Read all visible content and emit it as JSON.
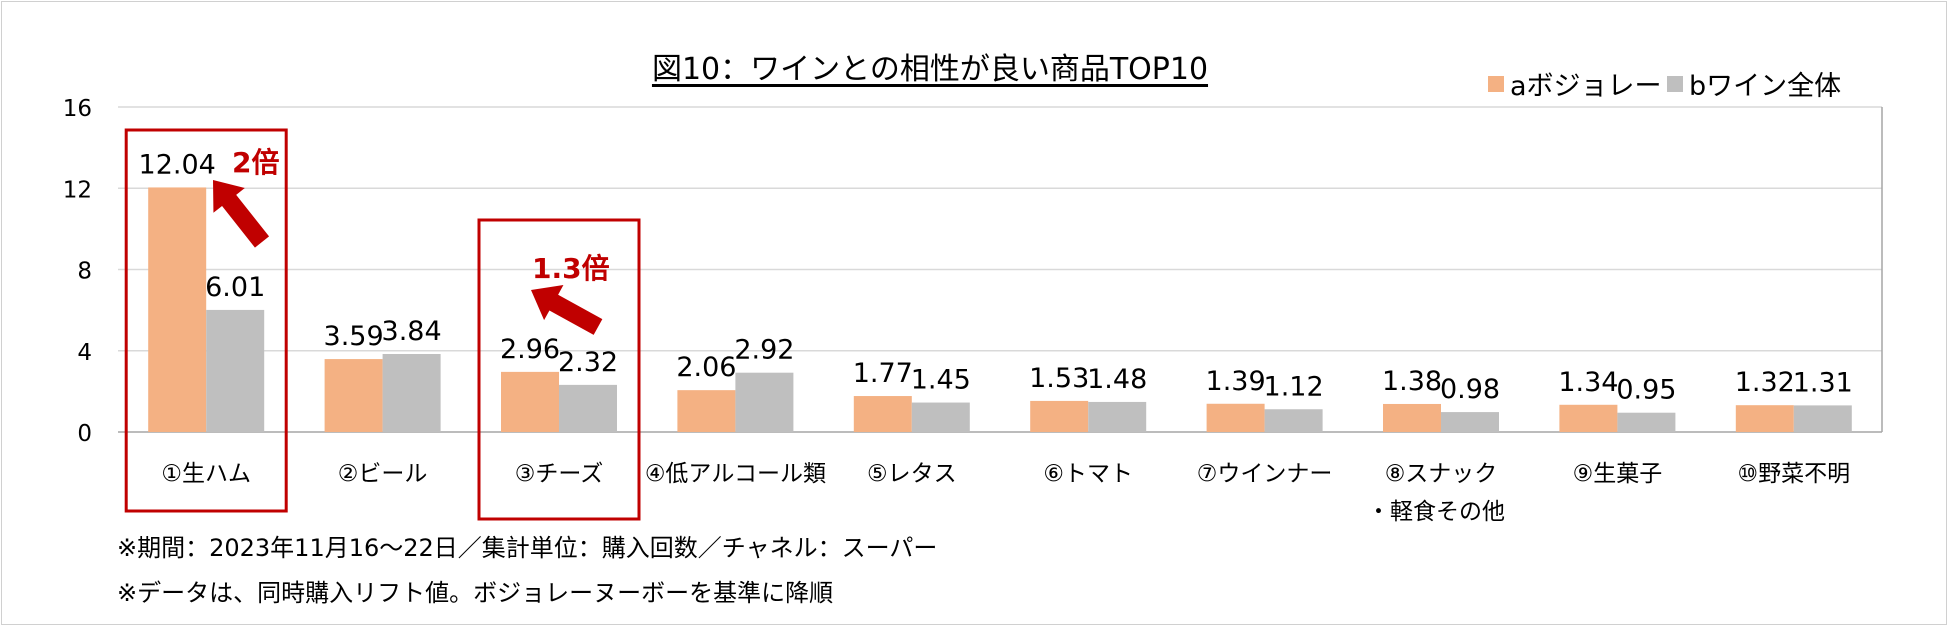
{
  "chart_data": {
    "type": "bar",
    "title": "図10：ワインとの相性が良い商品TOP10",
    "categories": [
      "①生ハム",
      "②ビール",
      "③チーズ",
      "④低アルコール類",
      "⑤レタス",
      "⑥トマト",
      "⑦ウインナー",
      "⑧スナック・軽食その他",
      "⑨生菓子",
      "⑩野菜不明"
    ],
    "category_lines": [
      [
        "①生ハム"
      ],
      [
        "②ビール"
      ],
      [
        "③チーズ"
      ],
      [
        "④低アルコール類"
      ],
      [
        "⑤レタス"
      ],
      [
        "⑥トマト"
      ],
      [
        "⑦ウインナー"
      ],
      [
        "⑧スナック",
        "・軽食その他"
      ],
      [
        "⑨生菓子"
      ],
      [
        "⑩野菜不明"
      ]
    ],
    "series": [
      {
        "name": "aボジョレー",
        "color": "#F4B183",
        "values": [
          12.04,
          3.59,
          2.96,
          2.06,
          1.77,
          1.53,
          1.39,
          1.38,
          1.34,
          1.32
        ],
        "labels": [
          "12.04",
          "3.59",
          "2.96",
          "2.06",
          "1.77",
          "1.53",
          "1.39",
          "1.38",
          "1.34",
          "1.32"
        ]
      },
      {
        "name": "bワイン全体",
        "color": "#BFBFBF",
        "values": [
          6.01,
          3.84,
          2.32,
          2.92,
          1.45,
          1.48,
          1.12,
          0.98,
          0.95,
          1.31
        ],
        "labels": [
          "6.01",
          "3.84",
          "2.32",
          "2.92",
          "1.45",
          "1.48",
          "1.12",
          "0.98",
          "0.95",
          "1.31"
        ]
      }
    ],
    "ylim": [
      0,
      16
    ],
    "yticks": [
      "0",
      "4",
      "8",
      "12",
      "16"
    ],
    "grid": true,
    "legend_position": "top-right",
    "annotations": [
      {
        "text": "2倍",
        "category": "①生ハム",
        "color": "#C00000"
      },
      {
        "text": "1.3倍",
        "category": "③チーズ",
        "color": "#C00000"
      }
    ]
  },
  "notes": [
    "※期間：2023年11月16～22日／集計単位：購入回数／チャネル：スーパー",
    "※データは、同時購入リフト値。ボジョレーヌーボーを基準に降順"
  ],
  "colors": {
    "highlight": "#C00000",
    "grid": "#D9D9D9"
  }
}
